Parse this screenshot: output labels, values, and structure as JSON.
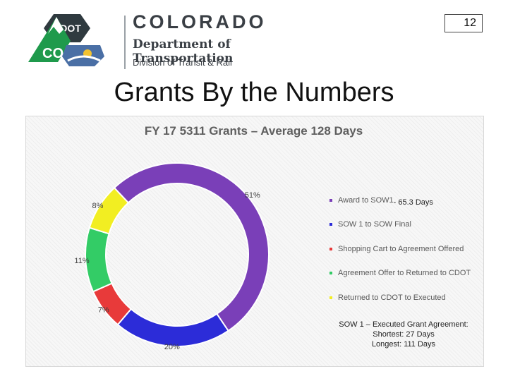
{
  "logo": {
    "badge_text": "CDOT",
    "badge_letters": "CO",
    "title": "COLORADO",
    "subtitle": "Department of Transportation",
    "division": "Division of Transit & Rail"
  },
  "page_number": "12",
  "slide_title": "Grants By the Numbers",
  "chart_data": {
    "type": "pie",
    "title": "FY 17 5311 Grants – Average 128 Days",
    "donut": true,
    "categories": [
      "Award to SOW1",
      "SOW 1 to SOW Final",
      "Shopping Cart to Agreement Offered",
      "Agreement Offer to Returned to CDOT",
      "Returned to CDOT to Executed"
    ],
    "values": [
      51,
      20,
      7,
      11,
      8
    ],
    "data_labels": [
      "51%",
      "20%",
      "7%",
      "11%",
      "8%"
    ],
    "colors": [
      "#7a3fb8",
      "#2c2cd8",
      "#e83a3a",
      "#33cc66",
      "#f2ee22"
    ],
    "legend_position": "right",
    "annotations": [
      "- 65.3 Days"
    ]
  },
  "note": {
    "line1": "SOW 1 – Executed Grant Agreement:",
    "line2": "Shortest: 27 Days",
    "line3": "Longest: 111 Days"
  }
}
